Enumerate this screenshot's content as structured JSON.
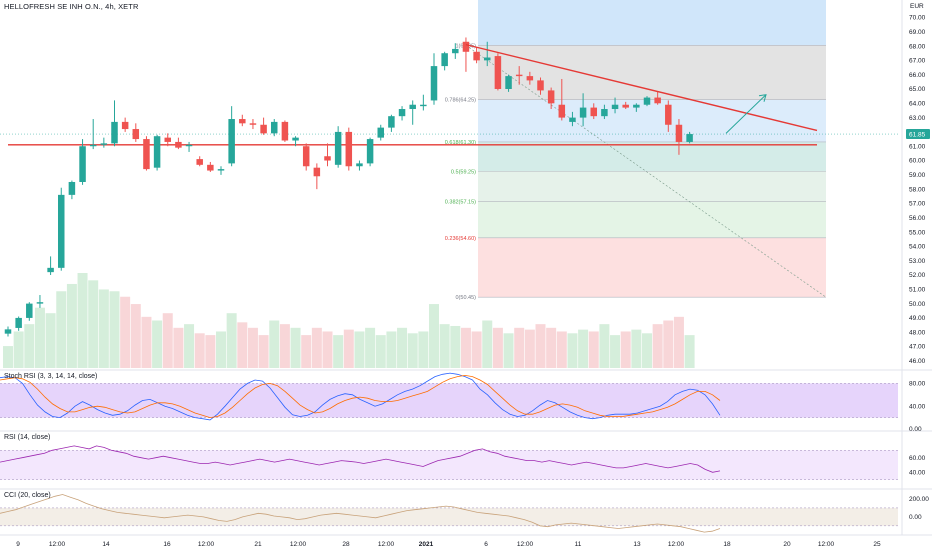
{
  "title": "HELLOFRESH SE INH O.N., 4h, XETR",
  "currency": "EUR",
  "price_tag": "61.85",
  "panels": {
    "stoch": "Stoch RSI (3, 3, 14, 14, close)",
    "rsi": "RSI (14, close)",
    "cci": "CCI (20, close)"
  },
  "colors": {
    "up": "#26a69a",
    "down": "#ef5350",
    "volume_up": "#d5eedb",
    "volume_down": "#f8d6d8",
    "trendline": "#e53935",
    "arrow": "#26a69a"
  },
  "chart_data": [
    {
      "type": "candlestick",
      "timeframe": "4h",
      "ylim": [
        45.5,
        70.8
      ],
      "y_ticks": [
        46,
        47,
        48,
        49,
        50,
        51,
        52,
        53,
        54,
        55,
        56,
        57,
        58,
        59,
        60,
        61,
        62,
        63,
        64,
        65,
        66,
        67,
        68,
        69,
        70
      ],
      "y_tick_labels": [
        "46.00",
        "47.00",
        "48.00",
        "49.00",
        "50.00",
        "51.00",
        "52.00",
        "53.00",
        "54.00",
        "55.00",
        "56.00",
        "57.00",
        "58.00",
        "59.00",
        "60.00",
        "61.00",
        "62.00",
        "63.00",
        "64.00",
        "65.00",
        "66.00",
        "67.00",
        "68.00",
        "69.00",
        "70.00"
      ],
      "x_labels": [
        "9",
        "12:00",
        "14",
        "16",
        "12:00",
        "21",
        "12:00",
        "28",
        "12:00",
        "2021",
        "6",
        "12:00",
        "11",
        "13",
        "12:00",
        "18",
        "20",
        "12:00",
        "25"
      ],
      "candles": [
        {
          "o": 47.9,
          "h": 48.4,
          "l": 47.7,
          "c": 48.2
        },
        {
          "o": 48.3,
          "h": 49.1,
          "l": 48.1,
          "c": 49.0
        },
        {
          "o": 49.0,
          "h": 50.1,
          "l": 48.8,
          "c": 50.0
        },
        {
          "o": 50.0,
          "h": 50.6,
          "l": 49.7,
          "c": 50.1
        },
        {
          "o": 52.2,
          "h": 53.3,
          "l": 52.0,
          "c": 52.5
        },
        {
          "o": 52.5,
          "h": 58.1,
          "l": 52.3,
          "c": 57.6
        },
        {
          "o": 57.6,
          "h": 58.6,
          "l": 57.3,
          "c": 58.5
        },
        {
          "o": 58.5,
          "h": 61.5,
          "l": 58.3,
          "c": 61.0
        },
        {
          "o": 61.0,
          "h": 62.9,
          "l": 60.8,
          "c": 61.1
        },
        {
          "o": 61.1,
          "h": 61.6,
          "l": 60.9,
          "c": 61.2
        },
        {
          "o": 61.2,
          "h": 64.2,
          "l": 61.0,
          "c": 62.7
        },
        {
          "o": 62.7,
          "h": 63.0,
          "l": 62.0,
          "c": 62.2
        },
        {
          "o": 62.2,
          "h": 62.6,
          "l": 61.3,
          "c": 61.5
        },
        {
          "o": 61.5,
          "h": 61.7,
          "l": 59.3,
          "c": 59.4
        },
        {
          "o": 59.5,
          "h": 61.8,
          "l": 59.3,
          "c": 61.7
        },
        {
          "o": 61.6,
          "h": 61.9,
          "l": 61.0,
          "c": 61.3
        },
        {
          "o": 61.3,
          "h": 61.6,
          "l": 60.8,
          "c": 60.9
        },
        {
          "o": 61.0,
          "h": 61.3,
          "l": 60.6,
          "c": 61.1
        },
        {
          "o": 60.1,
          "h": 60.3,
          "l": 59.6,
          "c": 59.7
        },
        {
          "o": 59.7,
          "h": 59.9,
          "l": 59.2,
          "c": 59.3
        },
        {
          "o": 59.3,
          "h": 59.6,
          "l": 59.0,
          "c": 59.4
        },
        {
          "o": 59.8,
          "h": 63.8,
          "l": 59.6,
          "c": 62.9
        },
        {
          "o": 62.9,
          "h": 63.2,
          "l": 62.4,
          "c": 62.6
        },
        {
          "o": 62.6,
          "h": 62.9,
          "l": 62.2,
          "c": 62.5
        },
        {
          "o": 62.5,
          "h": 63.0,
          "l": 61.8,
          "c": 61.9
        },
        {
          "o": 61.9,
          "h": 62.9,
          "l": 61.7,
          "c": 62.7
        },
        {
          "o": 62.7,
          "h": 62.8,
          "l": 61.3,
          "c": 61.4
        },
        {
          "o": 61.4,
          "h": 61.7,
          "l": 61.0,
          "c": 61.6
        },
        {
          "o": 61.0,
          "h": 61.2,
          "l": 59.3,
          "c": 59.6
        },
        {
          "o": 59.5,
          "h": 59.8,
          "l": 58.0,
          "c": 58.9
        },
        {
          "o": 60.3,
          "h": 61.2,
          "l": 59.6,
          "c": 60.0
        },
        {
          "o": 59.7,
          "h": 62.4,
          "l": 59.5,
          "c": 62.0
        },
        {
          "o": 62.0,
          "h": 62.3,
          "l": 59.3,
          "c": 59.6
        },
        {
          "o": 59.6,
          "h": 60.0,
          "l": 59.3,
          "c": 59.8
        },
        {
          "o": 59.8,
          "h": 61.6,
          "l": 59.6,
          "c": 61.5
        },
        {
          "o": 61.6,
          "h": 62.5,
          "l": 61.4,
          "c": 62.3
        },
        {
          "o": 62.3,
          "h": 63.2,
          "l": 62.0,
          "c": 63.1
        },
        {
          "o": 63.1,
          "h": 63.8,
          "l": 62.8,
          "c": 63.6
        },
        {
          "o": 63.6,
          "h": 64.2,
          "l": 62.5,
          "c": 63.9
        },
        {
          "o": 63.8,
          "h": 64.6,
          "l": 63.5,
          "c": 63.9
        },
        {
          "o": 64.2,
          "h": 67.5,
          "l": 63.9,
          "c": 66.6
        },
        {
          "o": 66.6,
          "h": 67.6,
          "l": 66.3,
          "c": 67.5
        },
        {
          "o": 67.5,
          "h": 68.2,
          "l": 67.1,
          "c": 67.8
        },
        {
          "o": 68.3,
          "h": 68.6,
          "l": 66.2,
          "c": 67.6
        },
        {
          "o": 67.6,
          "h": 67.9,
          "l": 66.8,
          "c": 67.0
        },
        {
          "o": 67.0,
          "h": 68.3,
          "l": 66.6,
          "c": 67.2
        },
        {
          "o": 67.3,
          "h": 67.5,
          "l": 64.9,
          "c": 65.0
        },
        {
          "o": 65.0,
          "h": 66.0,
          "l": 64.8,
          "c": 65.9
        },
        {
          "o": 66.0,
          "h": 66.6,
          "l": 65.3,
          "c": 65.9
        },
        {
          "o": 65.9,
          "h": 66.2,
          "l": 65.3,
          "c": 65.6
        },
        {
          "o": 65.6,
          "h": 65.8,
          "l": 64.6,
          "c": 64.9
        },
        {
          "o": 64.9,
          "h": 65.1,
          "l": 63.6,
          "c": 64.0
        },
        {
          "o": 63.9,
          "h": 65.7,
          "l": 62.8,
          "c": 63.0
        },
        {
          "o": 62.7,
          "h": 63.4,
          "l": 62.4,
          "c": 63.0
        },
        {
          "o": 63.0,
          "h": 64.7,
          "l": 62.4,
          "c": 63.7
        },
        {
          "o": 63.7,
          "h": 64.0,
          "l": 62.9,
          "c": 63.1
        },
        {
          "o": 63.1,
          "h": 63.9,
          "l": 62.9,
          "c": 63.6
        },
        {
          "o": 63.6,
          "h": 64.4,
          "l": 63.3,
          "c": 63.9
        },
        {
          "o": 63.9,
          "h": 64.1,
          "l": 63.6,
          "c": 63.7
        },
        {
          "o": 63.7,
          "h": 64.0,
          "l": 63.4,
          "c": 63.9
        },
        {
          "o": 63.9,
          "h": 64.5,
          "l": 63.8,
          "c": 64.4
        },
        {
          "o": 64.4,
          "h": 64.8,
          "l": 63.9,
          "c": 64.0
        },
        {
          "o": 63.9,
          "h": 64.2,
          "l": 62.0,
          "c": 62.5
        },
        {
          "o": 62.5,
          "h": 62.9,
          "l": 60.4,
          "c": 61.3
        },
        {
          "o": 61.3,
          "h": 62.0,
          "l": 61.2,
          "c": 61.85
        }
      ],
      "volume": [
        12,
        20,
        24,
        33,
        30,
        42,
        46,
        52,
        48,
        43,
        42,
        39,
        35,
        28,
        26,
        30,
        22,
        24,
        19,
        18,
        20,
        30,
        25,
        22,
        18,
        26,
        24,
        22,
        18,
        22,
        20,
        18,
        21,
        20,
        22,
        18,
        20,
        22,
        19,
        20,
        35,
        24,
        23,
        22,
        20,
        26,
        22,
        19,
        22,
        21,
        24,
        22,
        20,
        19,
        21,
        20,
        24,
        18,
        20,
        21,
        19,
        24,
        26,
        28,
        18
      ],
      "horizontal_line": 61.1,
      "fib_levels": [
        {
          "label": "1(68.05)",
          "value": 68.05
        },
        {
          "label": "0.786(64.25)",
          "value": 64.25
        },
        {
          "label": "0.618(61.30)",
          "value": 61.3
        },
        {
          "label": "0.5(59.25)",
          "value": 59.25
        },
        {
          "label": "0.382(57.15)",
          "value": 57.15
        },
        {
          "label": "0.236(54.60)",
          "value": 54.6
        },
        {
          "label": "0(50.45)",
          "value": 50.45
        }
      ],
      "trendline": {
        "from": 68.1,
        "to": 62.1
      },
      "projection": {
        "from": 61.9,
        "to": 64.6
      }
    },
    {
      "type": "line",
      "name": "Stoch RSI (3, 3, 14, 14, close)",
      "ylim": [
        0,
        100
      ],
      "band": [
        20,
        80
      ],
      "y_tick_labels": [
        "80.00",
        "40.00",
        "0.00"
      ],
      "series": [
        {
          "name": "K",
          "color": "#2962ff",
          "values": [
            90,
            92,
            90,
            80,
            60,
            42,
            30,
            22,
            20,
            28,
            40,
            48,
            42,
            34,
            28,
            24,
            26,
            32,
            42,
            50,
            52,
            46,
            40,
            36,
            30,
            24,
            20,
            18,
            16,
            26,
            40,
            55,
            70,
            80,
            86,
            84,
            72,
            55,
            38,
            25,
            22,
            24,
            30,
            42,
            52,
            58,
            62,
            60,
            52,
            46,
            40,
            44,
            52,
            60,
            66,
            70,
            76,
            84,
            92,
            96,
            98,
            96,
            92,
            86,
            70,
            60,
            46,
            34,
            26,
            22,
            24,
            32,
            42,
            50,
            46,
            38,
            30,
            24,
            20,
            18,
            20,
            24,
            26,
            26,
            26,
            28,
            32,
            36,
            40,
            48,
            60,
            66,
            70,
            68,
            60,
            44,
            24
          ]
        },
        {
          "name": "D",
          "color": "#ff6d00",
          "values": [
            86,
            88,
            90,
            88,
            82,
            70,
            56,
            44,
            36,
            30,
            30,
            34,
            38,
            40,
            38,
            34,
            30,
            28,
            30,
            36,
            42,
            46,
            46,
            44,
            40,
            34,
            28,
            24,
            20,
            22,
            28,
            38,
            50,
            62,
            72,
            78,
            80,
            76,
            66,
            54,
            42,
            34,
            28,
            30,
            36,
            44,
            50,
            54,
            56,
            54,
            50,
            48,
            48,
            50,
            54,
            58,
            62,
            66,
            74,
            82,
            88,
            92,
            94,
            92,
            86,
            78,
            66,
            54,
            42,
            32,
            26,
            26,
            30,
            36,
            42,
            44,
            42,
            38,
            32,
            28,
            24,
            22,
            22,
            22,
            24,
            26,
            28,
            30,
            34,
            38,
            44,
            52,
            60,
            66,
            66,
            60,
            50
          ]
        }
      ]
    },
    {
      "type": "line",
      "name": "RSI (14, close)",
      "ylim": [
        20,
        95
      ],
      "band": [
        30,
        70
      ],
      "y_tick_labels": [
        "60.00",
        "40.00"
      ],
      "series": [
        {
          "name": "RSI",
          "color": "#9c27b0",
          "values": [
            54,
            56,
            58,
            60,
            62,
            64,
            66,
            70,
            72,
            74,
            76,
            74,
            72,
            76,
            74,
            70,
            68,
            66,
            62,
            60,
            58,
            60,
            62,
            60,
            58,
            56,
            54,
            52,
            52,
            54,
            52,
            50,
            52,
            54,
            56,
            58,
            56,
            54,
            56,
            58,
            56,
            54,
            52,
            50,
            52,
            54,
            56,
            55,
            54,
            52,
            54,
            56,
            58,
            56,
            54,
            52,
            50,
            48,
            52,
            56,
            58,
            60,
            62,
            66,
            70,
            72,
            68,
            66,
            62,
            60,
            58,
            56,
            56,
            54,
            56,
            54,
            52,
            50,
            52,
            54,
            52,
            50,
            48,
            46,
            46,
            48,
            50,
            52,
            50,
            48,
            46,
            48,
            50,
            52,
            50,
            44,
            40,
            42
          ]
        }
      ]
    },
    {
      "type": "line",
      "name": "CCI (20, close)",
      "ylim": [
        -180,
        300
      ],
      "band": [
        -100,
        100
      ],
      "y_tick_labels": [
        "200.00",
        "0.00"
      ],
      "series": [
        {
          "name": "CCI",
          "color": "#c8a27a",
          "values": [
            40,
            60,
            80,
            110,
            140,
            170,
            200,
            230,
            250,
            220,
            190,
            150,
            120,
            90,
            70,
            50,
            40,
            30,
            20,
            10,
            0,
            -10,
            0,
            10,
            20,
            10,
            0,
            -20,
            -40,
            -50,
            -30,
            0,
            20,
            40,
            30,
            10,
            0,
            -10,
            -30,
            -20,
            0,
            20,
            30,
            40,
            30,
            20,
            10,
            0,
            -10,
            10,
            30,
            50,
            70,
            80,
            90,
            100,
            110,
            120,
            110,
            90,
            70,
            50,
            40,
            30,
            20,
            10,
            -10,
            -30,
            -60,
            -100,
            -110,
            -90,
            -80,
            -70,
            -80,
            -90,
            -100,
            -110,
            -120,
            -130,
            -120,
            -110,
            -100,
            -90,
            -80,
            -90,
            -100,
            -110,
            -130,
            -150,
            -170,
            -160,
            -130
          ]
        }
      ]
    }
  ]
}
